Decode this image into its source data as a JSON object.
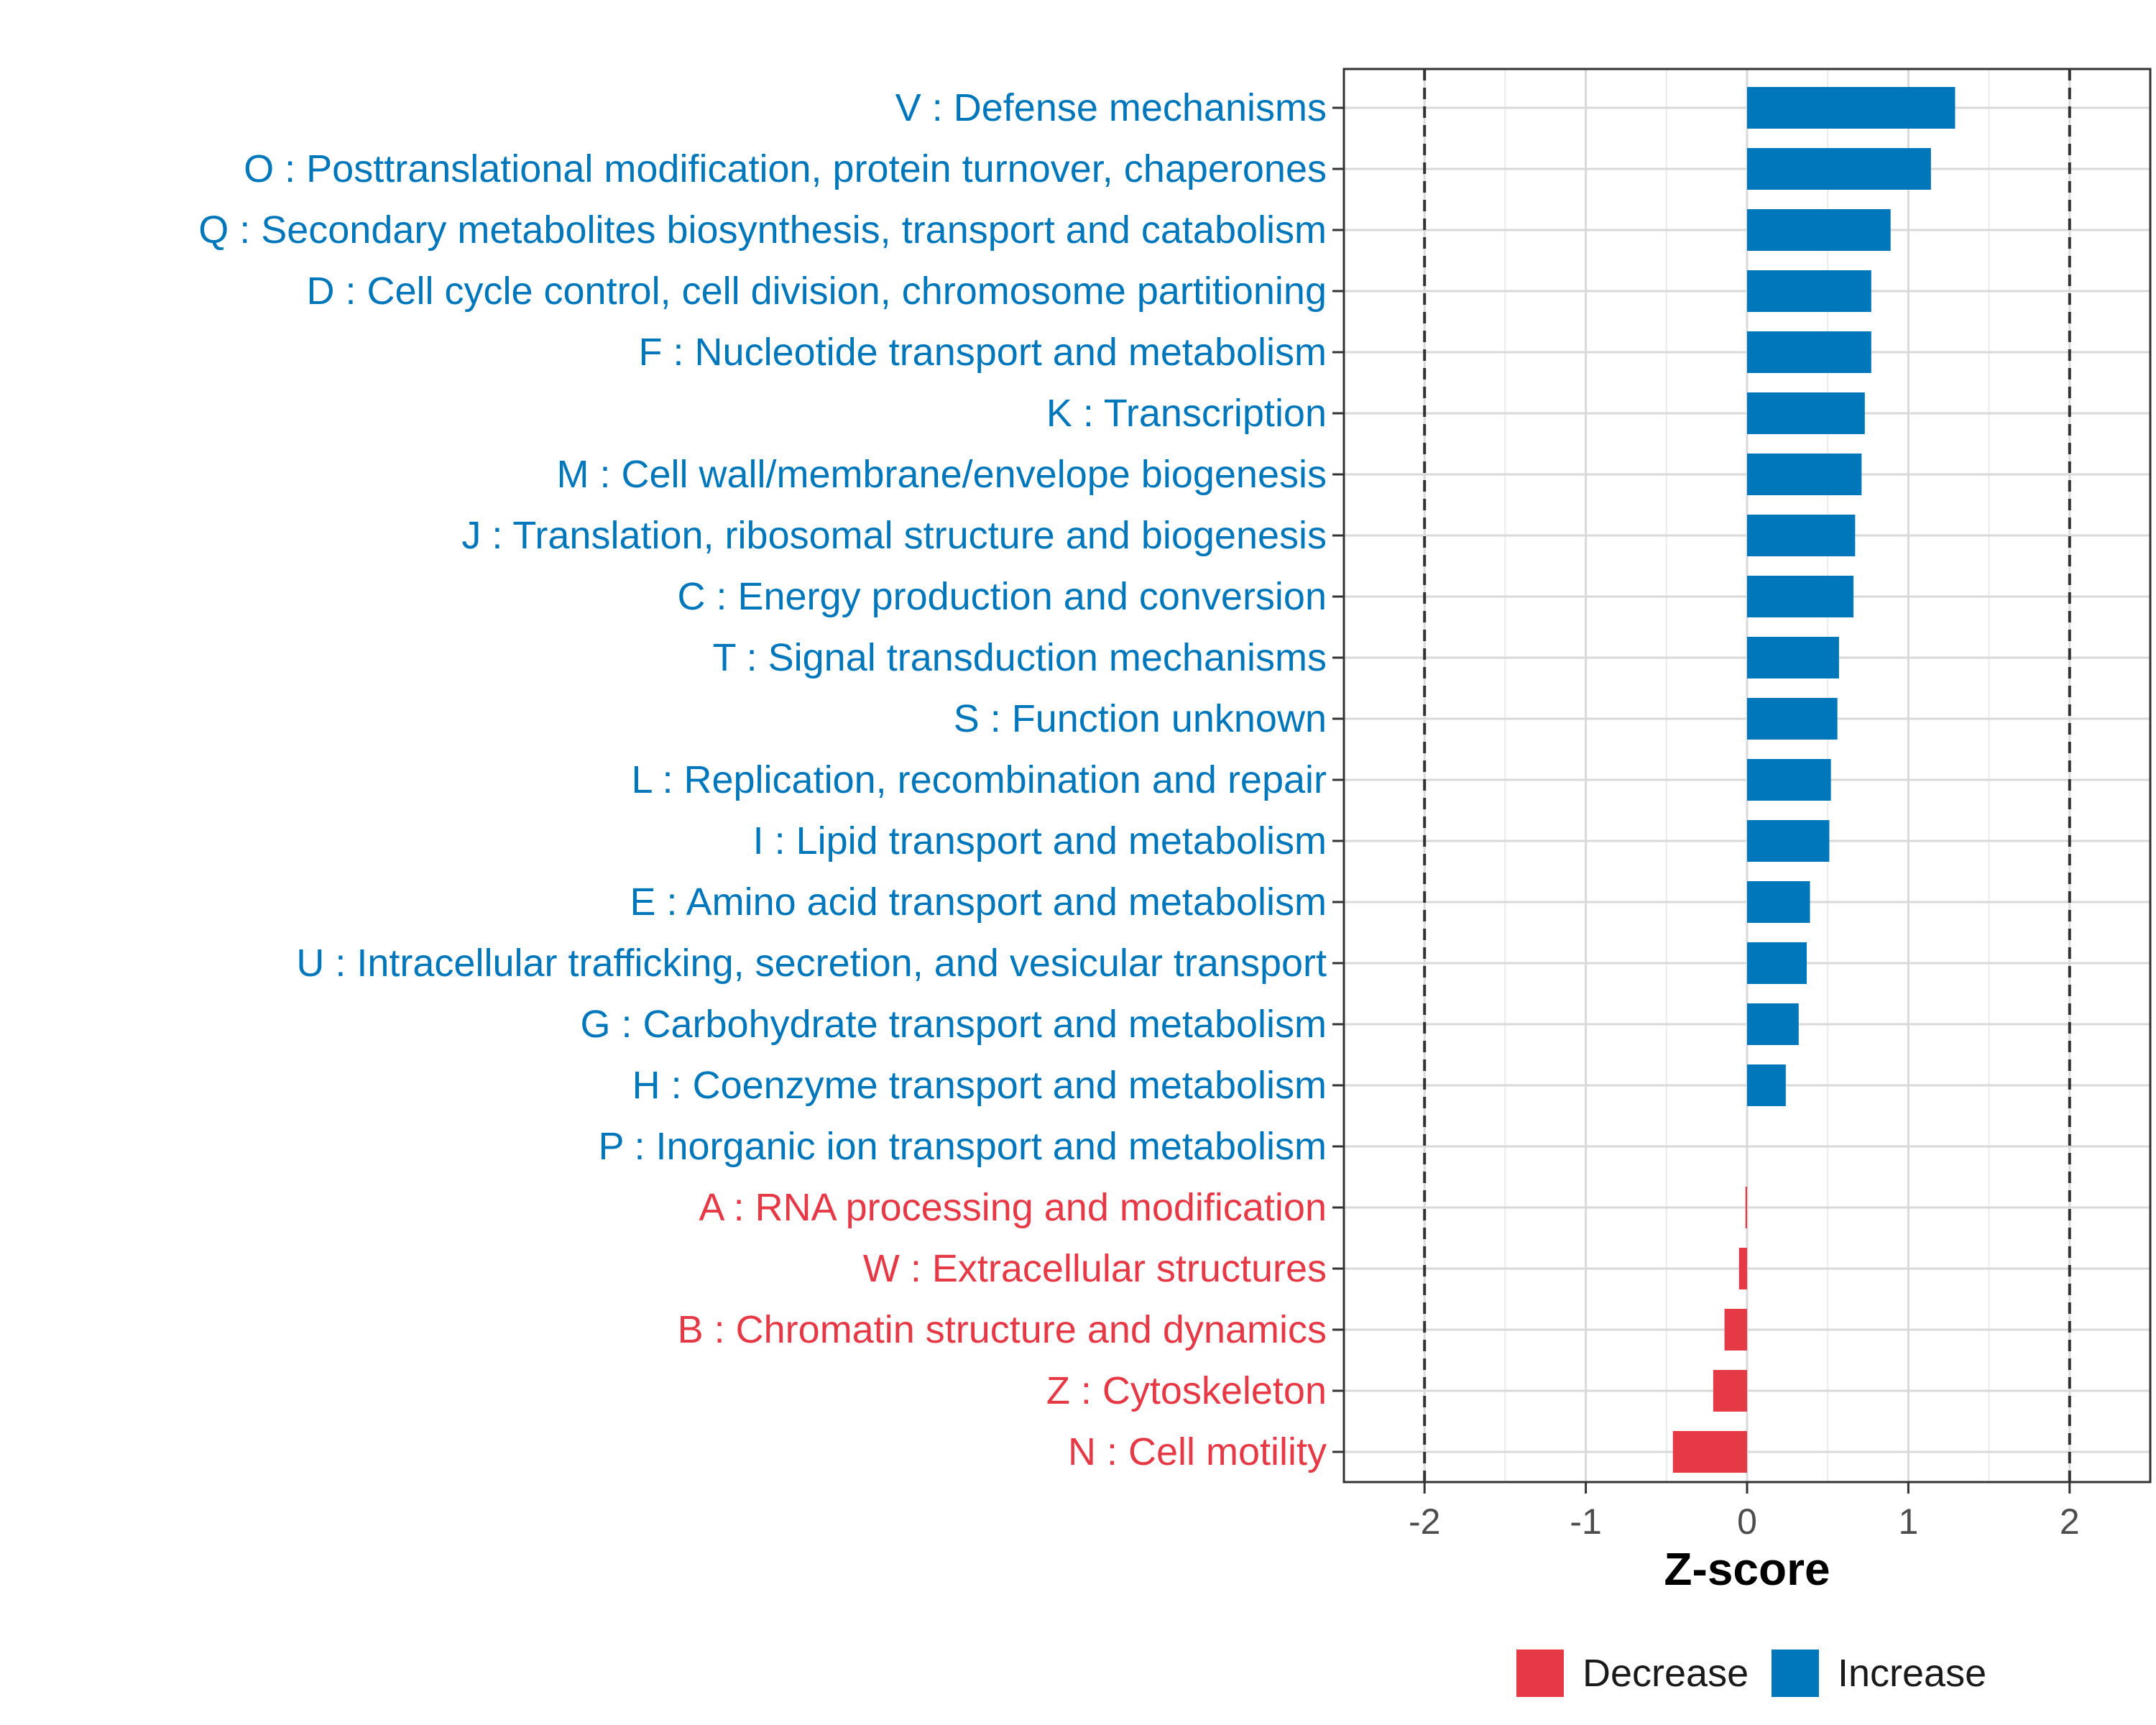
{
  "chart_data": {
    "type": "bar",
    "orientation": "horizontal",
    "title": "",
    "xlabel": "Z-score",
    "ylabel": "",
    "xlim": [
      -2.5,
      2.5
    ],
    "xticks": [
      -2,
      -1,
      0,
      1,
      2
    ],
    "xtick_labels": [
      "-2",
      "-1",
      "0",
      "1",
      "2"
    ],
    "reference_lines": [
      -2,
      2
    ],
    "grid": true,
    "legend": {
      "position": "bottom",
      "items": [
        {
          "label": "Decrease",
          "color": "#E63946"
        },
        {
          "label": "Increase",
          "color": "#0077BB"
        }
      ]
    },
    "categories": [
      "V : Defense mechanisms",
      "O : Posttranslational modification, protein turnover, chaperones",
      "Q : Secondary metabolites biosynthesis, transport and catabolism",
      "D : Cell cycle control, cell division, chromosome partitioning",
      "F : Nucleotide transport and metabolism",
      "K : Transcription",
      "M : Cell wall/membrane/envelope biogenesis",
      "J : Translation, ribosomal structure and biogenesis",
      "C : Energy production and conversion",
      "T : Signal transduction mechanisms",
      "S : Function unknown",
      "L : Replication, recombination and repair",
      "I : Lipid transport and metabolism",
      "E : Amino acid transport and metabolism",
      "U : Intracellular trafficking, secretion, and vesicular transport",
      "G : Carbohydrate transport and metabolism",
      "H : Coenzyme transport and metabolism",
      "P : Inorganic ion transport and metabolism",
      "A : RNA processing and modification",
      "W : Extracellular structures",
      "B : Chromatin structure and dynamics",
      "Z : Cytoskeleton",
      "N : Cell motility"
    ],
    "values": [
      1.29,
      1.14,
      0.89,
      0.77,
      0.77,
      0.73,
      0.71,
      0.67,
      0.66,
      0.57,
      0.56,
      0.52,
      0.51,
      0.39,
      0.37,
      0.32,
      0.24,
      0.0,
      -0.01,
      -0.05,
      -0.14,
      -0.21,
      -0.46
    ],
    "groups": [
      "Increase",
      "Increase",
      "Increase",
      "Increase",
      "Increase",
      "Increase",
      "Increase",
      "Increase",
      "Increase",
      "Increase",
      "Increase",
      "Increase",
      "Increase",
      "Increase",
      "Increase",
      "Increase",
      "Increase",
      "Increase",
      "Decrease",
      "Decrease",
      "Decrease",
      "Decrease",
      "Decrease"
    ]
  }
}
